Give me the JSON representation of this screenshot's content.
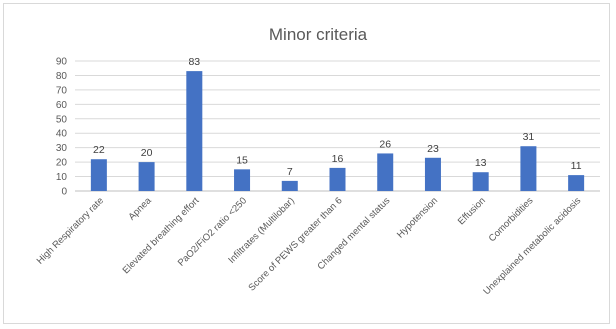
{
  "chart_data": {
    "type": "bar",
    "title": "Minor criteria",
    "xlabel": "",
    "ylabel": "",
    "ylim": [
      0,
      90
    ],
    "yticks": [
      0,
      10,
      20,
      30,
      40,
      50,
      60,
      70,
      80,
      90
    ],
    "grid": true,
    "legend": "none",
    "bar_color": "#4472c4",
    "categories": [
      "High Respiratory rate",
      "Apnea",
      "Elevated breathing effort",
      "PaO2/FiO2 ratio <250",
      "Infiltrates (Multilobar)",
      "Score of PEWS greater than 6",
      "Changed mental status",
      "Hypotension",
      "Effusion",
      "Comorbidities",
      "Unexplained metabolic acidosis"
    ],
    "values": [
      22,
      20,
      83,
      15,
      7,
      16,
      26,
      23,
      13,
      31,
      11
    ]
  }
}
